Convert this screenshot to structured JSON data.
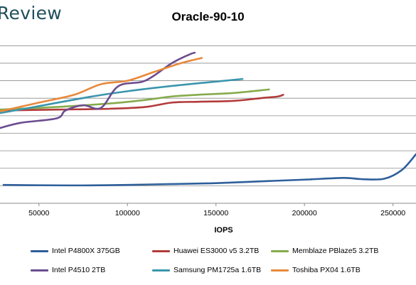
{
  "brand": "Review",
  "chart_data": {
    "type": "line",
    "title": "Oracle-90-10",
    "xlabel": "IOPS",
    "ylabel": "",
    "xlim": [
      28000,
      263000
    ],
    "ylim": [
      0,
      9.5
    ],
    "xticks": [
      50000,
      100000,
      150000,
      200000,
      250000
    ],
    "xtick_labels": [
      "50000",
      "100000",
      "150000",
      "200000",
      "250000"
    ],
    "yticks": [
      1,
      2,
      3,
      4,
      5,
      6,
      7,
      8,
      9
    ],
    "grid": true,
    "legend_position": "bottom",
    "series": [
      {
        "name": "Intel P4800X 375GB",
        "color": "#2e5f9a",
        "x": [
          30000,
          50000,
          75000,
          100000,
          125000,
          150000,
          175000,
          200000,
          222000,
          232000,
          245000,
          255000,
          263000
        ],
        "y": [
          1.05,
          1.03,
          1.02,
          1.05,
          1.1,
          1.15,
          1.25,
          1.35,
          1.45,
          1.38,
          1.4,
          1.9,
          2.8
        ]
      },
      {
        "name": "Huawei ES3000 v5 3.2TB",
        "color": "#b33a3a",
        "x": [
          28000,
          60000,
          90000,
          110000,
          125000,
          140000,
          160000,
          175000,
          185000,
          188000
        ],
        "y": [
          5.3,
          5.35,
          5.4,
          5.5,
          5.75,
          5.8,
          5.85,
          6.0,
          6.1,
          6.2
        ]
      },
      {
        "name": "Memblaze PBlaze5 3.2TB",
        "color": "#86ab4c",
        "x": [
          28000,
          60000,
          90000,
          110000,
          125000,
          140000,
          160000,
          180000
        ],
        "y": [
          5.35,
          5.5,
          5.7,
          5.9,
          6.1,
          6.2,
          6.3,
          6.5
        ]
      },
      {
        "name": "Intel P4510 2TB",
        "color": "#6b4c8f",
        "x": [
          28000,
          40000,
          60000,
          65000,
          75000,
          85000,
          95000,
          110000,
          125000,
          135000,
          138000
        ],
        "y": [
          4.3,
          4.6,
          4.85,
          5.3,
          5.6,
          5.45,
          6.7,
          7.0,
          8.0,
          8.5,
          8.6
        ]
      },
      {
        "name": "Samsung PM1725a 1.6TB",
        "color": "#3a96ad",
        "x": [
          28000,
          50000,
          80000,
          100000,
          125000,
          150000,
          165000
        ],
        "y": [
          5.15,
          5.55,
          6.1,
          6.4,
          6.7,
          6.95,
          7.1
        ]
      },
      {
        "name": "Toshiba PX04 1.6TB",
        "color": "#e8893a",
        "x": [
          28000,
          50000,
          70000,
          85000,
          100000,
          115000,
          130000,
          142000
        ],
        "y": [
          5.25,
          5.75,
          6.2,
          6.8,
          7.0,
          7.5,
          8.0,
          8.3
        ]
      }
    ]
  }
}
